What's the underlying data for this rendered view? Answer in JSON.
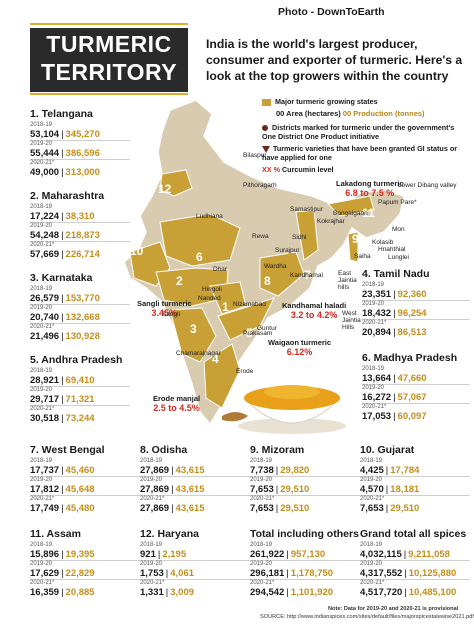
{
  "photo_credit": "Photo - DownToEarth",
  "title": {
    "line1": "TURMERIC",
    "line2": "TERRITORY"
  },
  "intro": "India is the world's largest producer, consumer and exporter of turmeric. Here's a look at the top growers within the country",
  "legend": {
    "major_states": "Major turmeric growing states",
    "area_code": "00",
    "area_label": "Area (hectares)",
    "production_code": "00",
    "production_label": "Production (tonnes)",
    "districts": "Districts marked for turmeric under the government's One District One Product initiative",
    "varieties": "Turmeric varieties that have been granted GI status or have applied for one",
    "curcumin_code": "XX %",
    "curcumin_label": "Curcumin level"
  },
  "years": [
    "2018-19",
    "2019-20",
    "2020-21*"
  ],
  "states_left": [
    {
      "name": "1. Telangana",
      "rows": [
        [
          "53,104",
          "345,270"
        ],
        [
          "55,444",
          "386,596"
        ],
        [
          "49,000",
          "313,000"
        ]
      ]
    },
    {
      "name": "2. Maharashtra",
      "rows": [
        [
          "17,224",
          "38,310"
        ],
        [
          "54,248",
          "218,873"
        ],
        [
          "57,669",
          "226,714"
        ]
      ]
    },
    {
      "name": "3. Karnataka",
      "rows": [
        [
          "26,579",
          "153,770"
        ],
        [
          "20,740",
          "132,668"
        ],
        [
          "21,496",
          "130,928"
        ]
      ]
    },
    {
      "name": "5. Andhra Pradesh",
      "rows": [
        [
          "28,921",
          "69,410"
        ],
        [
          "29,717",
          "71,321"
        ],
        [
          "30,518",
          "73,244"
        ]
      ]
    }
  ],
  "states_right": [
    {
      "name": "4. Tamil Nadu",
      "rows": [
        [
          "23,351",
          "92,360"
        ],
        [
          "18,432",
          "96,254"
        ],
        [
          "20,894",
          "86,513"
        ]
      ]
    },
    {
      "name": "6. Madhya Pradesh",
      "rows": [
        [
          "13,664",
          "47,660"
        ],
        [
          "16,272",
          "57,067"
        ],
        [
          "17,053",
          "60,097"
        ]
      ]
    }
  ],
  "states_row1": [
    {
      "name": "7. West Bengal",
      "rows": [
        [
          "17,737",
          "45,460"
        ],
        [
          "17,812",
          "45,648"
        ],
        [
          "17,749",
          "45,480"
        ]
      ]
    },
    {
      "name": "8. Odisha",
      "rows": [
        [
          "27,869",
          "43,615"
        ],
        [
          "27,869",
          "43,615"
        ],
        [
          "27,869",
          "43,615"
        ]
      ]
    },
    {
      "name": "9. Mizoram",
      "rows": [
        [
          "7,738",
          "29,820"
        ],
        [
          "7,653",
          "29,510"
        ],
        [
          "7,653",
          "29,510"
        ]
      ]
    },
    {
      "name": "10. Gujarat",
      "rows": [
        [
          "4,425",
          "17,784"
        ],
        [
          "4,570",
          "18,181"
        ],
        [
          "7,653",
          "29,510"
        ]
      ]
    }
  ],
  "states_row2": [
    {
      "name": "11. Assam",
      "rows": [
        [
          "15,896",
          "19,395"
        ],
        [
          "17,629",
          "22,829"
        ],
        [
          "16,359",
          "20,885"
        ]
      ]
    },
    {
      "name": "12. Haryana",
      "rows": [
        [
          "921",
          "2,195"
        ],
        [
          "1,753",
          "4,061"
        ],
        [
          "1,331",
          "3,009"
        ]
      ]
    },
    {
      "name": "Total including others",
      "rows": [
        [
          "261,922",
          "957,130"
        ],
        [
          "296,181",
          "1,178,750"
        ],
        [
          "294,542",
          "1,101,920"
        ]
      ]
    },
    {
      "name": "Grand total all spices",
      "rows": [
        [
          "4,032,115",
          "9,211,058"
        ],
        [
          "4,317,552",
          "10,125,880"
        ],
        [
          "4,517,720",
          "10,485,100"
        ]
      ]
    }
  ],
  "map": {
    "places": [
      "Bilaspur",
      "Pithoragarh",
      "Lakadong turmeric",
      "6.8 to 7.5 %",
      "Lower Dibang valley",
      "Papum Pare*",
      "Samastipur",
      "Bongaigaon",
      "Kokrajhar",
      "Mon",
      "Kolasib",
      "Hnahthial",
      "Lunglei",
      "Saiha",
      "Ludhiana",
      "Rewa",
      "Sidhi",
      "Surajpur",
      "Dhar",
      "Wardha",
      "Kandhamal",
      "Kandhamal haladi",
      "3.2 to 4.2%",
      "Waigaon turmeric",
      "6.12%",
      "Sangli turmeric",
      "3.45%",
      "Hingoli",
      "Nanded",
      "Nizamabad",
      "Sangli",
      "Prakasam",
      "Guntur",
      "Chamarajnagar",
      "Erode",
      "Erode manjal",
      "2.5 to 4.5%",
      "East Jaintia hills",
      "West Jaintia Hills"
    ],
    "numbers": [
      "1",
      "2",
      "3",
      "4",
      "5",
      "6",
      "7",
      "8",
      "9",
      "10",
      "11",
      "12"
    ]
  },
  "note": "Note: Data for 2019-20 and 2020-21 is provisional",
  "source": "SOURCE: http://www.indianspices.com/sites/default/files/majorspicestatewise2021.pdf",
  "colors": {
    "gold": "#c9a035",
    "dark": "#2a2a2a",
    "red": "#d22a1f",
    "brown": "#6b2a17"
  }
}
